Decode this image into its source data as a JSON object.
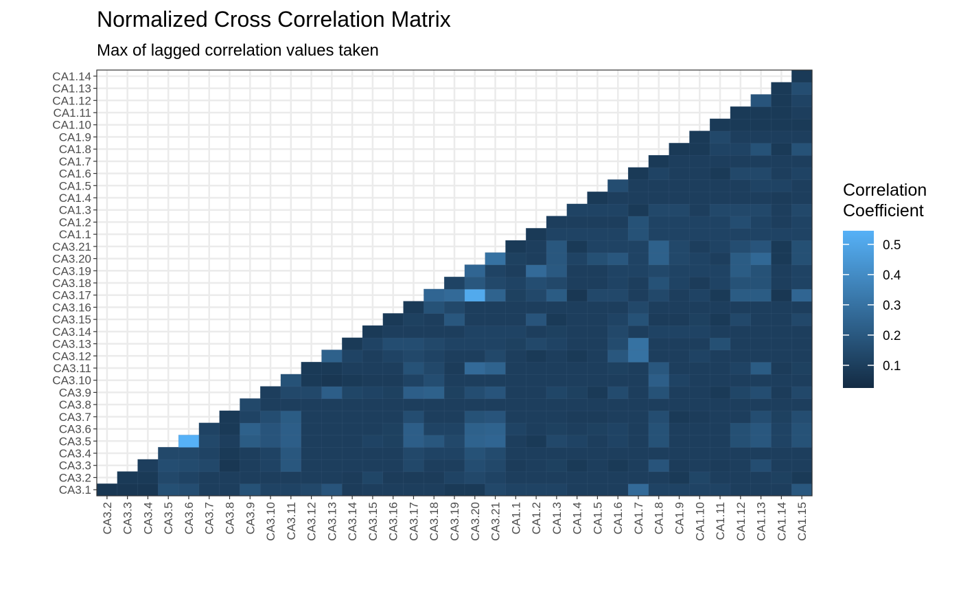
{
  "chart_data": {
    "type": "heatmap",
    "title": "Normalized Cross Correlation Matrix",
    "subtitle": "Max of lagged correlation values taken",
    "legend": {
      "title_lines": [
        "Correlation",
        "Coefficient"
      ],
      "ticks": [
        0.1,
        0.2,
        0.3,
        0.4,
        0.5
      ],
      "range": [
        0.0,
        0.55
      ],
      "low_color": "#132B43",
      "high_color": "#56B1F7",
      "placement": "right"
    },
    "x_categories": [
      "CA3.2",
      "CA3.3",
      "CA3.4",
      "CA3.5",
      "CA3.6",
      "CA3.7",
      "CA3.8",
      "CA3.9",
      "CA3.10",
      "CA3.11",
      "CA3.12",
      "CA3.13",
      "CA3.14",
      "CA3.15",
      "CA3.16",
      "CA3.17",
      "CA3.18",
      "CA3.19",
      "CA3.20",
      "CA3.21",
      "CA1.1",
      "CA1.2",
      "CA1.3",
      "CA1.4",
      "CA1.5",
      "CA1.6",
      "CA1.7",
      "CA1.8",
      "CA1.9",
      "CA1.10",
      "CA1.11",
      "CA1.12",
      "CA1.13",
      "CA1.14",
      "CA1.15"
    ],
    "y_categories": [
      "CA3.1",
      "CA3.2",
      "CA3.3",
      "CA3.4",
      "CA3.5",
      "CA3.6",
      "CA3.7",
      "CA3.8",
      "CA3.9",
      "CA3.10",
      "CA3.11",
      "CA3.12",
      "CA3.13",
      "CA3.14",
      "CA3.15",
      "CA3.16",
      "CA3.17",
      "CA3.18",
      "CA3.19",
      "CA3.20",
      "CA3.21",
      "CA1.1",
      "CA1.2",
      "CA1.3",
      "CA1.4",
      "CA1.5",
      "CA1.6",
      "CA1.7",
      "CA1.8",
      "CA1.9",
      "CA1.10",
      "CA1.11",
      "CA1.12",
      "CA1.13",
      "CA1.14"
    ],
    "values": [
      [
        0.05,
        0.05,
        0.05,
        0.15,
        0.14,
        0.08,
        0.08,
        0.16,
        0.1,
        0.1,
        0.12,
        0.17,
        0.07,
        0.08,
        0.08,
        0.08,
        0.08,
        0.06,
        0.06,
        0.12,
        0.1,
        0.1,
        0.1,
        0.08,
        0.08,
        0.08,
        0.26,
        0.1,
        0.1,
        0.1,
        0.1,
        0.08,
        0.08,
        0.08,
        0.18
      ],
      [
        null,
        0.06,
        0.06,
        0.12,
        0.1,
        0.08,
        0.08,
        0.08,
        0.08,
        0.08,
        0.08,
        0.08,
        0.07,
        0.11,
        0.07,
        0.07,
        0.07,
        0.1,
        0.12,
        0.1,
        0.08,
        0.08,
        0.08,
        0.08,
        0.08,
        0.08,
        0.08,
        0.08,
        0.06,
        0.11,
        0.08,
        0.08,
        0.08,
        0.09,
        0.06
      ],
      [
        null,
        null,
        0.08,
        0.14,
        0.13,
        0.12,
        0.05,
        0.08,
        0.1,
        0.18,
        0.08,
        0.08,
        0.08,
        0.08,
        0.08,
        0.12,
        0.08,
        0.08,
        0.14,
        0.12,
        0.07,
        0.08,
        0.09,
        0.06,
        0.08,
        0.06,
        0.08,
        0.17,
        0.07,
        0.08,
        0.07,
        0.08,
        0.14,
        0.08,
        0.08
      ],
      [
        null,
        null,
        null,
        0.12,
        0.12,
        0.1,
        0.06,
        0.08,
        0.1,
        0.18,
        0.08,
        0.08,
        0.08,
        0.08,
        0.08,
        0.12,
        0.1,
        0.1,
        0.16,
        0.13,
        0.08,
        0.08,
        0.08,
        0.08,
        0.08,
        0.08,
        0.08,
        0.08,
        0.08,
        0.08,
        0.08,
        0.08,
        0.08,
        0.08,
        0.08
      ],
      [
        null,
        null,
        null,
        null,
        0.55,
        0.12,
        0.08,
        0.2,
        0.17,
        0.21,
        0.08,
        0.08,
        0.08,
        0.1,
        0.09,
        0.21,
        0.18,
        0.12,
        0.23,
        0.24,
        0.08,
        0.06,
        0.12,
        0.1,
        0.08,
        0.1,
        0.08,
        0.16,
        0.08,
        0.08,
        0.08,
        0.15,
        0.18,
        0.1,
        0.16
      ],
      [
        null,
        null,
        null,
        null,
        null,
        0.1,
        0.06,
        0.22,
        0.17,
        0.21,
        0.08,
        0.08,
        0.08,
        0.08,
        0.09,
        0.21,
        0.1,
        0.1,
        0.22,
        0.23,
        0.1,
        0.08,
        0.09,
        0.08,
        0.09,
        0.1,
        0.08,
        0.16,
        0.08,
        0.08,
        0.08,
        0.15,
        0.18,
        0.1,
        0.16
      ],
      [
        null,
        null,
        null,
        null,
        null,
        null,
        0.06,
        0.1,
        0.14,
        0.2,
        0.08,
        0.08,
        0.08,
        0.08,
        0.08,
        0.14,
        0.08,
        0.08,
        0.16,
        0.17,
        0.08,
        0.08,
        0.08,
        0.07,
        0.07,
        0.08,
        0.08,
        0.14,
        0.06,
        0.07,
        0.08,
        0.08,
        0.14,
        0.09,
        0.14
      ],
      [
        null,
        null,
        null,
        null,
        null,
        null,
        null,
        0.12,
        0.08,
        0.08,
        0.08,
        0.08,
        0.08,
        0.08,
        0.08,
        0.08,
        0.08,
        0.08,
        0.08,
        0.08,
        0.08,
        0.08,
        0.08,
        0.08,
        0.08,
        0.08,
        0.08,
        0.08,
        0.08,
        0.08,
        0.08,
        0.08,
        0.08,
        0.08,
        0.08
      ],
      [
        null,
        null,
        null,
        null,
        null,
        null,
        null,
        null,
        0.08,
        0.12,
        0.12,
        0.21,
        0.11,
        0.1,
        0.09,
        0.21,
        0.22,
        0.09,
        0.14,
        0.17,
        0.08,
        0.08,
        0.11,
        0.09,
        0.06,
        0.13,
        0.08,
        0.16,
        0.08,
        0.08,
        0.06,
        0.11,
        0.14,
        0.07,
        0.12
      ],
      [
        null,
        null,
        null,
        null,
        null,
        null,
        null,
        null,
        null,
        0.16,
        0.06,
        0.05,
        0.06,
        0.07,
        0.07,
        0.1,
        0.14,
        0.08,
        0.08,
        0.08,
        0.08,
        0.08,
        0.08,
        0.08,
        0.08,
        0.08,
        0.08,
        0.21,
        0.1,
        0.08,
        0.08,
        0.08,
        0.08,
        0.08,
        0.08
      ],
      [
        null,
        null,
        null,
        null,
        null,
        null,
        null,
        null,
        null,
        null,
        0.06,
        0.06,
        0.08,
        0.08,
        0.08,
        0.16,
        0.12,
        0.07,
        0.26,
        0.23,
        0.08,
        0.08,
        0.08,
        0.08,
        0.08,
        0.09,
        0.08,
        0.18,
        0.08,
        0.08,
        0.08,
        0.1,
        0.2,
        0.07,
        0.09
      ],
      [
        null,
        null,
        null,
        null,
        null,
        null,
        null,
        null,
        null,
        null,
        null,
        0.22,
        0.1,
        0.08,
        0.1,
        0.12,
        0.1,
        0.08,
        0.08,
        0.12,
        0.08,
        0.06,
        0.08,
        0.06,
        0.08,
        0.18,
        0.29,
        0.08,
        0.08,
        0.1,
        0.08,
        0.08,
        0.08,
        0.08,
        0.08
      ],
      [
        null,
        null,
        null,
        null,
        null,
        null,
        null,
        null,
        null,
        null,
        null,
        null,
        0.06,
        0.1,
        0.14,
        0.14,
        0.12,
        0.1,
        0.1,
        0.1,
        0.09,
        0.12,
        0.1,
        0.08,
        0.08,
        0.13,
        0.29,
        0.08,
        0.08,
        0.08,
        0.15,
        0.08,
        0.08,
        0.08,
        0.08
      ],
      [
        null,
        null,
        null,
        null,
        null,
        null,
        null,
        null,
        null,
        null,
        null,
        null,
        null,
        0.06,
        0.08,
        0.08,
        0.08,
        0.08,
        0.1,
        0.1,
        0.1,
        0.08,
        0.09,
        0.08,
        0.08,
        0.12,
        0.08,
        0.1,
        0.1,
        0.1,
        0.08,
        0.08,
        0.08,
        0.08,
        0.08
      ],
      [
        null,
        null,
        null,
        null,
        null,
        null,
        null,
        null,
        null,
        null,
        null,
        null,
        null,
        null,
        0.06,
        0.09,
        0.08,
        0.18,
        0.08,
        0.08,
        0.08,
        0.17,
        0.06,
        0.08,
        0.08,
        0.1,
        0.16,
        0.07,
        0.07,
        0.09,
        0.06,
        0.12,
        0.08,
        0.08,
        0.12
      ],
      [
        null,
        null,
        null,
        null,
        null,
        null,
        null,
        null,
        null,
        null,
        null,
        null,
        null,
        null,
        null,
        0.06,
        0.16,
        0.12,
        0.08,
        0.08,
        0.08,
        0.08,
        0.08,
        0.08,
        0.08,
        0.08,
        0.12,
        0.08,
        0.08,
        0.08,
        0.08,
        0.08,
        0.08,
        0.08,
        0.08
      ],
      [
        null,
        null,
        null,
        null,
        null,
        null,
        null,
        null,
        null,
        null,
        null,
        null,
        null,
        null,
        null,
        null,
        0.24,
        0.26,
        0.52,
        0.23,
        0.09,
        0.12,
        0.2,
        0.05,
        0.12,
        0.12,
        0.08,
        0.12,
        0.08,
        0.1,
        0.06,
        0.2,
        0.2,
        0.05,
        0.24
      ],
      [
        null,
        null,
        null,
        null,
        null,
        null,
        null,
        null,
        null,
        null,
        null,
        null,
        null,
        null,
        null,
        null,
        null,
        0.1,
        0.18,
        0.12,
        0.1,
        0.14,
        0.12,
        0.08,
        0.08,
        0.1,
        0.08,
        0.16,
        0.1,
        0.07,
        0.1,
        0.16,
        0.16,
        0.08,
        0.1
      ],
      [
        null,
        null,
        null,
        null,
        null,
        null,
        null,
        null,
        null,
        null,
        null,
        null,
        null,
        null,
        null,
        null,
        null,
        null,
        0.24,
        0.1,
        0.08,
        0.26,
        0.19,
        0.08,
        0.08,
        0.1,
        0.1,
        0.12,
        0.1,
        0.1,
        0.1,
        0.2,
        0.16,
        0.08,
        0.1
      ],
      [
        null,
        null,
        null,
        null,
        null,
        null,
        null,
        null,
        null,
        null,
        null,
        null,
        null,
        null,
        null,
        null,
        null,
        null,
        null,
        0.29,
        0.09,
        0.08,
        0.18,
        0.1,
        0.15,
        0.18,
        0.1,
        0.22,
        0.12,
        0.1,
        0.08,
        0.2,
        0.25,
        0.06,
        0.15
      ],
      [
        null,
        null,
        null,
        null,
        null,
        null,
        null,
        null,
        null,
        null,
        null,
        null,
        null,
        null,
        null,
        null,
        null,
        null,
        null,
        null,
        0.06,
        0.08,
        0.18,
        0.06,
        0.1,
        0.1,
        0.1,
        0.22,
        0.12,
        0.08,
        0.1,
        0.14,
        0.17,
        0.06,
        0.15
      ],
      [
        null,
        null,
        null,
        null,
        null,
        null,
        null,
        null,
        null,
        null,
        null,
        null,
        null,
        null,
        null,
        null,
        null,
        null,
        null,
        null,
        null,
        0.06,
        0.1,
        0.1,
        0.1,
        0.1,
        0.16,
        0.1,
        0.1,
        0.1,
        0.1,
        0.1,
        0.1,
        0.1,
        0.1
      ],
      [
        null,
        null,
        null,
        null,
        null,
        null,
        null,
        null,
        null,
        null,
        null,
        null,
        null,
        null,
        null,
        null,
        null,
        null,
        null,
        null,
        null,
        null,
        0.08,
        0.08,
        0.08,
        0.08,
        0.16,
        0.1,
        0.1,
        0.1,
        0.1,
        0.14,
        0.1,
        0.08,
        0.1
      ],
      [
        null,
        null,
        null,
        null,
        null,
        null,
        null,
        null,
        null,
        null,
        null,
        null,
        null,
        null,
        null,
        null,
        null,
        null,
        null,
        null,
        null,
        null,
        null,
        0.1,
        0.1,
        0.1,
        0.06,
        0.12,
        0.12,
        0.08,
        0.12,
        0.12,
        0.12,
        0.08,
        0.12
      ],
      [
        null,
        null,
        null,
        null,
        null,
        null,
        null,
        null,
        null,
        null,
        null,
        null,
        null,
        null,
        null,
        null,
        null,
        null,
        null,
        null,
        null,
        null,
        null,
        null,
        0.06,
        0.08,
        0.08,
        0.08,
        0.08,
        0.08,
        0.08,
        0.08,
        0.08,
        0.07,
        0.08
      ],
      [
        null,
        null,
        null,
        null,
        null,
        null,
        null,
        null,
        null,
        null,
        null,
        null,
        null,
        null,
        null,
        null,
        null,
        null,
        null,
        null,
        null,
        null,
        null,
        null,
        null,
        0.14,
        0.08,
        0.08,
        0.08,
        0.08,
        0.08,
        0.08,
        0.1,
        0.1,
        0.08
      ],
      [
        null,
        null,
        null,
        null,
        null,
        null,
        null,
        null,
        null,
        null,
        null,
        null,
        null,
        null,
        null,
        null,
        null,
        null,
        null,
        null,
        null,
        null,
        null,
        null,
        null,
        null,
        0.06,
        0.1,
        0.08,
        0.08,
        0.06,
        0.12,
        0.12,
        0.08,
        0.1
      ],
      [
        null,
        null,
        null,
        null,
        null,
        null,
        null,
        null,
        null,
        null,
        null,
        null,
        null,
        null,
        null,
        null,
        null,
        null,
        null,
        null,
        null,
        null,
        null,
        null,
        null,
        null,
        null,
        0.06,
        0.08,
        0.08,
        0.08,
        0.08,
        0.08,
        0.08,
        0.08
      ],
      [
        null,
        null,
        null,
        null,
        null,
        null,
        null,
        null,
        null,
        null,
        null,
        null,
        null,
        null,
        null,
        null,
        null,
        null,
        null,
        null,
        null,
        null,
        null,
        null,
        null,
        null,
        null,
        null,
        0.06,
        0.06,
        0.1,
        0.1,
        0.16,
        0.06,
        0.16
      ],
      [
        null,
        null,
        null,
        null,
        null,
        null,
        null,
        null,
        null,
        null,
        null,
        null,
        null,
        null,
        null,
        null,
        null,
        null,
        null,
        null,
        null,
        null,
        null,
        null,
        null,
        null,
        null,
        null,
        null,
        0.06,
        0.12,
        0.08,
        0.08,
        0.08,
        0.08
      ],
      [
        null,
        null,
        null,
        null,
        null,
        null,
        null,
        null,
        null,
        null,
        null,
        null,
        null,
        null,
        null,
        null,
        null,
        null,
        null,
        null,
        null,
        null,
        null,
        null,
        null,
        null,
        null,
        null,
        null,
        null,
        0.06,
        0.06,
        0.06,
        0.06,
        0.06
      ],
      [
        null,
        null,
        null,
        null,
        null,
        null,
        null,
        null,
        null,
        null,
        null,
        null,
        null,
        null,
        null,
        null,
        null,
        null,
        null,
        null,
        null,
        null,
        null,
        null,
        null,
        null,
        null,
        null,
        null,
        null,
        null,
        0.06,
        0.06,
        0.06,
        0.08
      ],
      [
        null,
        null,
        null,
        null,
        null,
        null,
        null,
        null,
        null,
        null,
        null,
        null,
        null,
        null,
        null,
        null,
        null,
        null,
        null,
        null,
        null,
        null,
        null,
        null,
        null,
        null,
        null,
        null,
        null,
        null,
        null,
        null,
        0.17,
        0.06,
        0.1
      ],
      [
        null,
        null,
        null,
        null,
        null,
        null,
        null,
        null,
        null,
        null,
        null,
        null,
        null,
        null,
        null,
        null,
        null,
        null,
        null,
        null,
        null,
        null,
        null,
        null,
        null,
        null,
        null,
        null,
        null,
        null,
        null,
        null,
        null,
        0.06,
        0.14
      ],
      [
        null,
        null,
        null,
        null,
        null,
        null,
        null,
        null,
        null,
        null,
        null,
        null,
        null,
        null,
        null,
        null,
        null,
        null,
        null,
        null,
        null,
        null,
        null,
        null,
        null,
        null,
        null,
        null,
        null,
        null,
        null,
        null,
        null,
        null,
        0.06
      ]
    ]
  }
}
